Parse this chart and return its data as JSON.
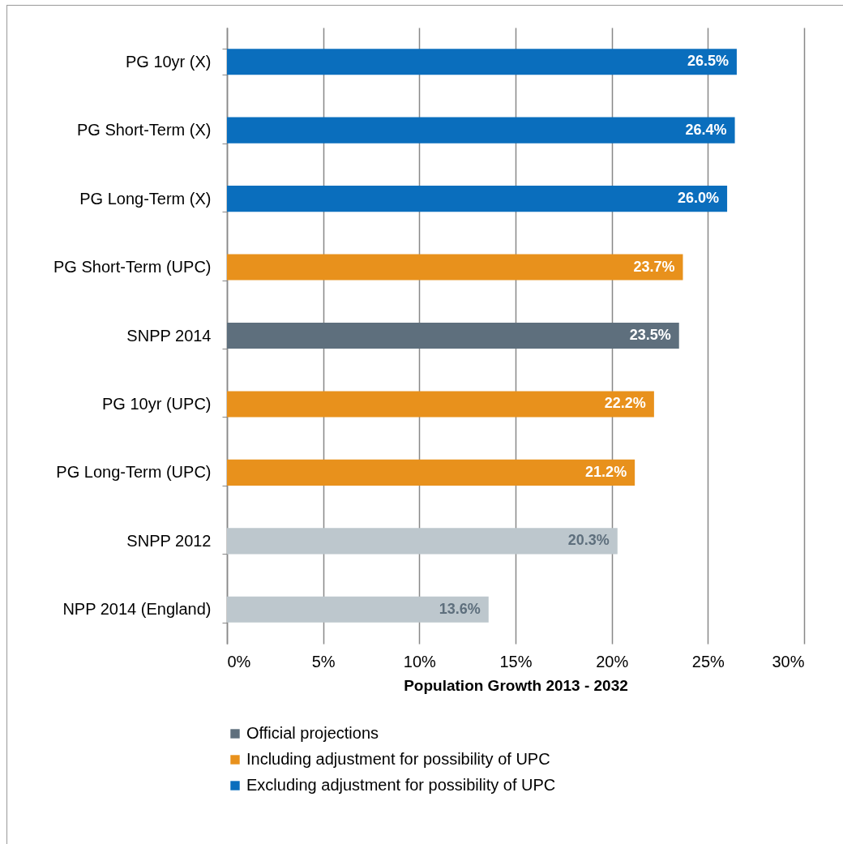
{
  "chart_data": {
    "type": "bar",
    "orientation": "horizontal",
    "xlabel": "Population Growth 2013 - 2032",
    "categories": [
      "PG 10yr (X)",
      "PG Short-Term (X)",
      "PG Long-Term (X)",
      "PG Short-Term (UPC)",
      "SNPP 2014",
      "PG 10yr (UPC)",
      "PG Long-Term (UPC)",
      "SNPP 2012",
      "NPP 2014 (England)"
    ],
    "series": [
      {
        "name": "Official projections",
        "color": "#5e6f7d",
        "values": [
          null,
          null,
          null,
          null,
          23.5,
          null,
          null,
          null,
          null
        ],
        "value_labels": [
          null,
          null,
          null,
          null,
          "23.5%",
          null,
          null,
          null,
          null
        ]
      },
      {
        "name": "Including adjustment for possibility of UPC",
        "color": "#e8911c",
        "values": [
          null,
          null,
          null,
          23.7,
          null,
          22.2,
          21.2,
          null,
          null
        ],
        "value_labels": [
          null,
          null,
          null,
          "23.7%",
          null,
          "22.2%",
          "21.2%",
          null,
          null
        ]
      },
      {
        "name": "Excluding adjustment for possibility of UPC",
        "color": "#0a6ebd",
        "values": [
          26.5,
          26.4,
          26.0,
          null,
          null,
          null,
          null,
          null,
          null
        ],
        "value_labels": [
          "26.5%",
          "26.4%",
          "26.0%",
          null,
          null,
          null,
          null,
          null,
          null
        ]
      },
      {
        "color": "#bdc7cd",
        "values": [
          null,
          null,
          null,
          null,
          null,
          null,
          null,
          20.3,
          13.6
        ],
        "value_labels": [
          null,
          null,
          null,
          null,
          null,
          null,
          null,
          "20.3%",
          "13.6%"
        ]
      }
    ],
    "xlim": [
      0,
      30
    ],
    "xticks": [
      {
        "value": 0,
        "label": "0%"
      },
      {
        "value": 5,
        "label": "5%"
      },
      {
        "value": 10,
        "label": "10%"
      },
      {
        "value": 15,
        "label": "15%"
      },
      {
        "value": 20,
        "label": "20%"
      },
      {
        "value": 25,
        "label": "25%"
      },
      {
        "value": 30,
        "label": "30%"
      }
    ],
    "grid": "x",
    "legend": "bottom"
  }
}
